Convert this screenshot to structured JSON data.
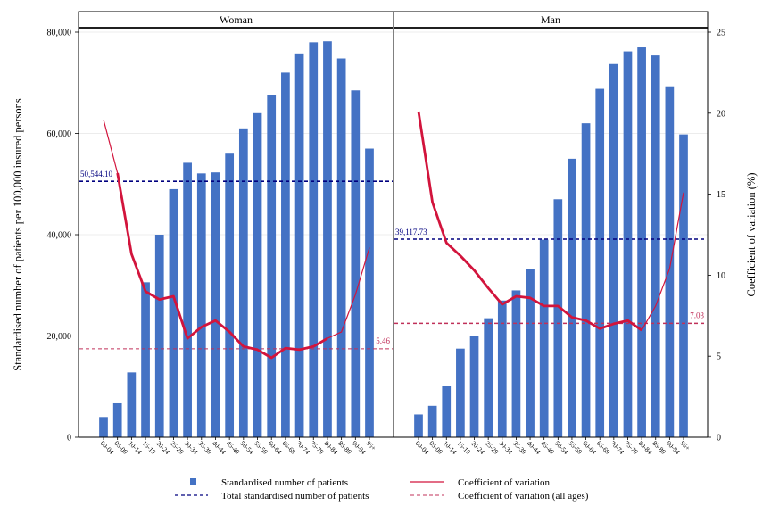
{
  "chart_data": {
    "type": "bar",
    "ylabel": "Standardised number of patients per 100,000 insured persons",
    "y2label": "Coefficient of variation (%)",
    "ylim": [
      0,
      80000
    ],
    "y2lim": [
      0,
      25
    ],
    "yticks": [
      "0",
      "20,000",
      "40,000",
      "60,000",
      "80,000"
    ],
    "y2ticks": [
      "0",
      "5",
      "10",
      "15",
      "20",
      "25"
    ],
    "categories": [
      "00-04",
      "05-09",
      "10-14",
      "15-19",
      "20-24",
      "25-29",
      "30-34",
      "35-39",
      "40-44",
      "45-49",
      "50-54",
      "55-59",
      "60-64",
      "65-69",
      "70-74",
      "75-79",
      "80-84",
      "85-89",
      "90-94",
      "95+"
    ],
    "panels": [
      {
        "title": "Woman",
        "bars": [
          4000,
          6700,
          12800,
          30600,
          40000,
          49000,
          54200,
          52100,
          52300,
          56000,
          61000,
          64000,
          67500,
          72000,
          75800,
          78000,
          78200,
          74800,
          68500,
          57000
        ],
        "cv": [
          19.6,
          16.3,
          11.3,
          9.0,
          8.5,
          8.7,
          6.1,
          6.8,
          7.2,
          6.5,
          5.6,
          5.4,
          4.9,
          5.5,
          5.4,
          5.6,
          6.1,
          6.5,
          8.8,
          11.7
        ],
        "cv_thick_range": [
          1,
          16
        ],
        "total_line": 50544.1,
        "total_label": "50,544.10",
        "cv_all": 5.46,
        "cv_all_label": "5.46"
      },
      {
        "title": "Man",
        "bars": [
          4500,
          6200,
          10200,
          17500,
          20000,
          23500,
          27000,
          29000,
          33200,
          39000,
          47000,
          55000,
          62000,
          68800,
          73700,
          76200,
          77000,
          75400,
          69300,
          59800
        ],
        "cv": [
          20.1,
          14.5,
          12.0,
          11.2,
          10.3,
          9.2,
          8.2,
          8.7,
          8.6,
          8.1,
          8.1,
          7.4,
          7.2,
          6.7,
          7.0,
          7.2,
          6.6,
          8.1,
          10.4,
          15.1
        ],
        "cv_thick_range": [
          0,
          16
        ],
        "total_line": 39117.73,
        "total_label": "39,117.73",
        "cv_all": 7.03,
        "cv_all_label": "7.03"
      }
    ],
    "legend": {
      "bars": "Standardised number of patients",
      "total": "Total standardised number of patients",
      "cv": "Coefficient of variation",
      "cv_all": "Coefficient of variation (all ages)"
    },
    "colors": {
      "bar": "#4472C4",
      "cv": "#D2143C",
      "total": "#00007F",
      "cv_all": "#C0305A"
    }
  }
}
